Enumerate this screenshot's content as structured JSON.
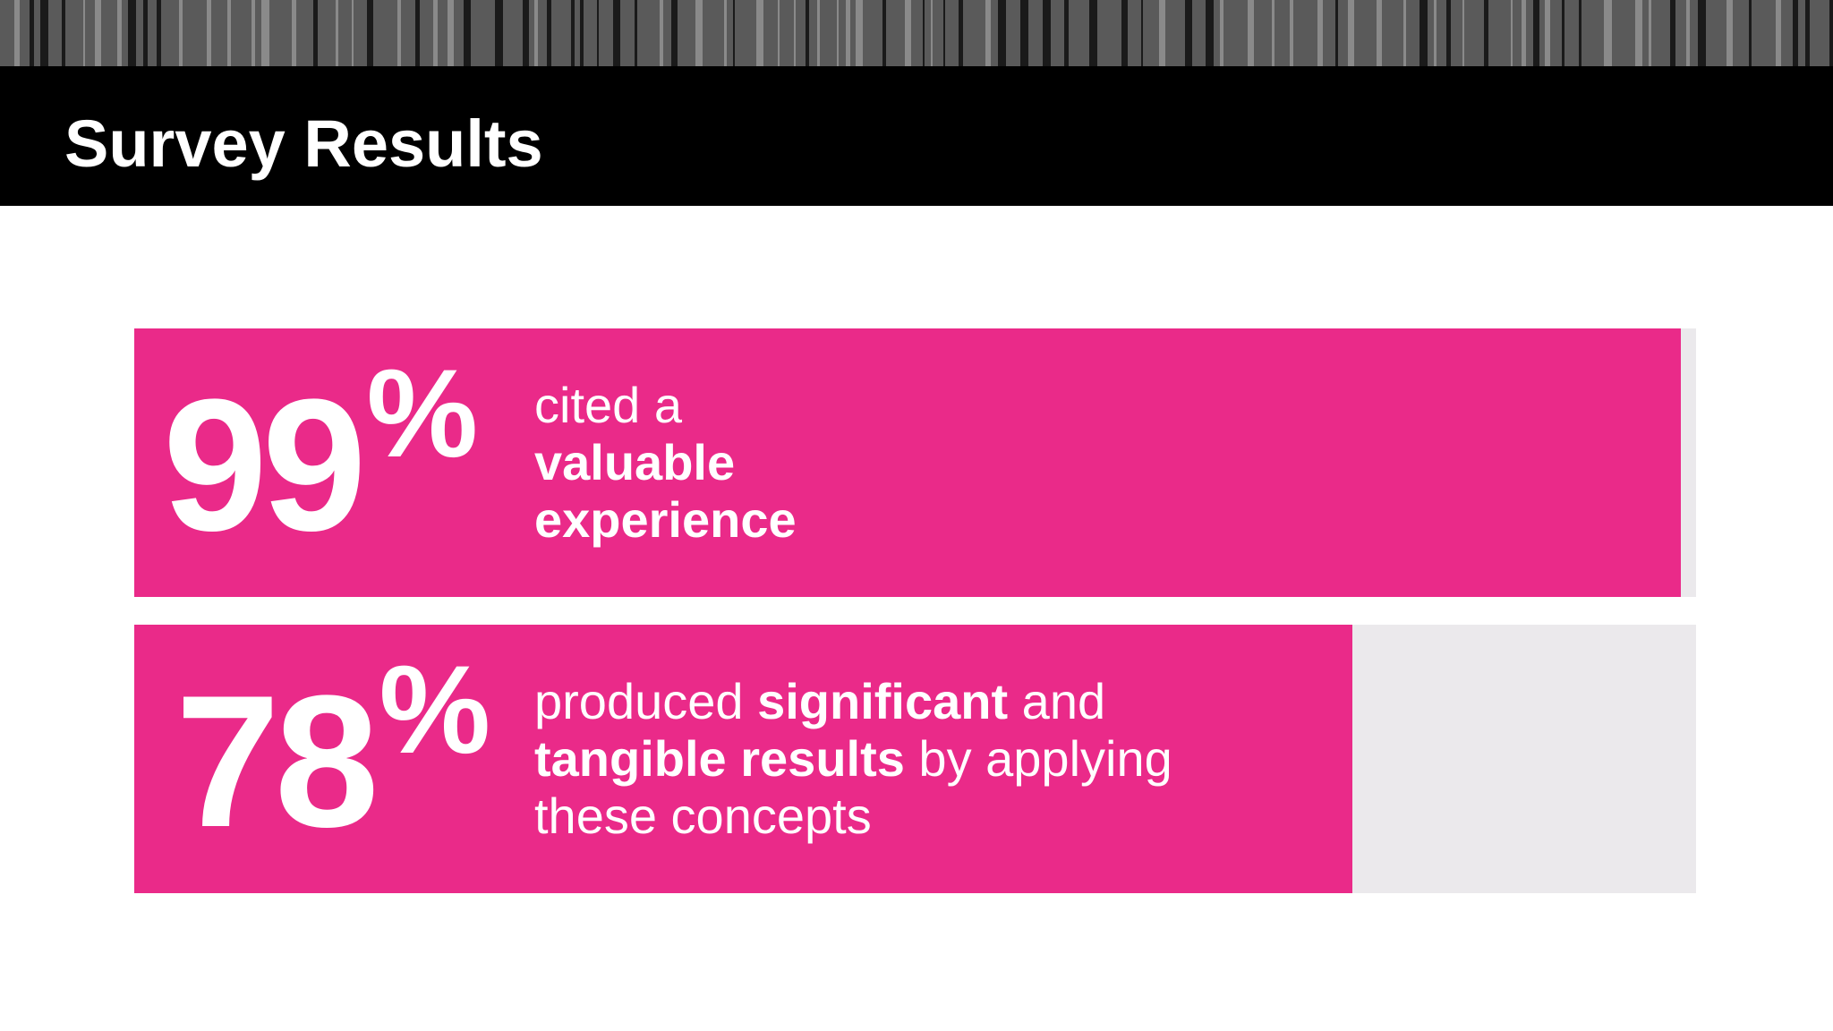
{
  "slide": {
    "title": "Survey Results"
  },
  "colors": {
    "bar_fill": "#ea2a89",
    "bar_track": "#ebe9ec",
    "header": "#000000",
    "stripe_dark": "#5a5a5a",
    "stripe_light": "#8a8a8a"
  },
  "chart_data": {
    "type": "bar",
    "orientation": "horizontal",
    "unit": "%",
    "xlim": [
      0,
      100
    ],
    "grid": false,
    "values": [
      99,
      78
    ],
    "items": [
      {
        "value": 99,
        "value_text": "99",
        "percent_sign": "%",
        "segments": [
          {
            "text": "cited a",
            "bold": false,
            "br": true
          },
          {
            "text": "valuable",
            "bold": true,
            "br": true
          },
          {
            "text": "experience",
            "bold": true,
            "br": false
          }
        ]
      },
      {
        "value": 78,
        "value_text": "78",
        "percent_sign": "%",
        "segments": [
          {
            "text": "produced ",
            "bold": false,
            "br": false
          },
          {
            "text": "significant",
            "bold": true,
            "br": false
          },
          {
            "text": " and",
            "bold": false,
            "br": true
          },
          {
            "text": "tangible results",
            "bold": true,
            "br": false
          },
          {
            "text": " by applying",
            "bold": false,
            "br": true
          },
          {
            "text": "these concepts",
            "bold": false,
            "br": false
          }
        ]
      }
    ]
  }
}
